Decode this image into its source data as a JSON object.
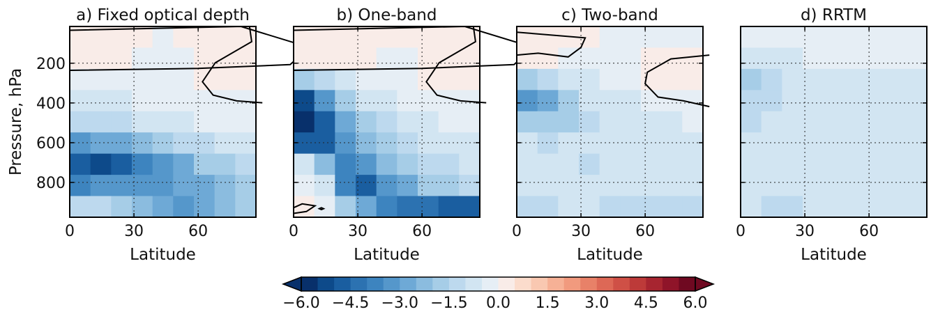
{
  "chart_data": {
    "type": "heatmap",
    "colormap": "RdBu_r",
    "colors": {
      "negative_max": "#08306b",
      "neutral": "#f7f7f7",
      "positive_max": "#67001f",
      "contour": "#000000"
    },
    "colorbar": {
      "orientation": "horizontal",
      "extend": "both",
      "range": [
        -6.0,
        6.0
      ],
      "levels": 24,
      "tick_values": [
        -6.0,
        -4.5,
        -3.0,
        -1.5,
        0.0,
        1.5,
        3.0,
        4.5,
        6.0
      ],
      "tick_labels": [
        "−6.0",
        "−4.5",
        "−3.0",
        "−1.5",
        "0.0",
        "1.5",
        "3.0",
        "4.5",
        "6.0"
      ]
    },
    "panels": [
      {
        "title": "a) Fixed optical depth",
        "xlabel": "Latitude",
        "ylabel": "Pressure, hPa",
        "show_yticks": true,
        "cells": [
          [
            0.3,
            0.4,
            0.2,
            0.0,
            -0.1,
            0.0,
            0.3,
            0.3,
            0.3
          ],
          [
            0.2,
            0.2,
            0.1,
            -0.1,
            -0.1,
            -0.1,
            0.3,
            0.3,
            0.3
          ],
          [
            -0.1,
            -0.1,
            -0.1,
            -0.1,
            -0.1,
            -0.2,
            0.2,
            0.3,
            0.3
          ],
          [
            -0.6,
            -0.6,
            -0.6,
            -0.5,
            -0.4,
            -0.3,
            -0.3,
            -0.2,
            -0.2
          ],
          [
            -1.3,
            -1.3,
            -1.2,
            -1.0,
            -0.9,
            -0.7,
            -0.5,
            -0.4,
            -0.3
          ],
          [
            -3.2,
            -3.0,
            -2.8,
            -2.4,
            -2.0,
            -1.5,
            -1.1,
            -0.8,
            -0.6
          ],
          [
            -5.0,
            -5.4,
            -4.6,
            -3.8,
            -3.2,
            -2.6,
            -2.0,
            -1.6,
            -1.1
          ],
          [
            -3.6,
            -3.4,
            -3.4,
            -3.3,
            -3.2,
            -2.9,
            -2.6,
            -2.1,
            -1.6
          ],
          [
            -1.4,
            -1.2,
            -1.6,
            -2.4,
            -3.0,
            -3.2,
            -3.0,
            -2.5,
            -2.0
          ]
        ],
        "contours": [
          "M 0 0.02 L 80 0 L 112 0.11 L 103 0.2 L 60 0.22 L 0 0.23",
          "M 84 0 L 85 0.08 L 68 0.19 L 62 0.29 L 67 0.36 L 78 0.39 L 90 0.4"
        ]
      },
      {
        "title": "b) One-band",
        "xlabel": "Latitude",
        "ylabel": "",
        "show_yticks": false,
        "cells": [
          [
            0.3,
            0.3,
            0.3,
            0.3,
            0.2,
            0.0,
            0.3,
            0.3,
            0.3
          ],
          [
            0.2,
            0.2,
            0.1,
            0.0,
            -0.1,
            -0.1,
            0.3,
            0.3,
            0.3
          ],
          [
            -2.0,
            -1.2,
            -0.6,
            -0.3,
            -0.2,
            -0.1,
            0.3,
            0.3,
            0.3
          ],
          [
            -5.4,
            -3.4,
            -1.8,
            -1.0,
            -0.6,
            -0.4,
            -0.3,
            -0.2,
            -0.2
          ],
          [
            -6.0,
            -4.6,
            -2.8,
            -1.8,
            -1.2,
            -0.8,
            -0.6,
            -0.5,
            -0.4
          ],
          [
            -4.8,
            -4.8,
            -3.4,
            -2.4,
            -1.8,
            -1.3,
            -1.0,
            -0.8,
            -0.6
          ],
          [
            -0.8,
            -2.4,
            -3.6,
            -3.2,
            -2.4,
            -1.8,
            -1.4,
            -1.1,
            -0.8
          ],
          [
            -0.2,
            -0.8,
            -3.6,
            -4.8,
            -3.4,
            -2.6,
            -2.0,
            -1.6,
            -1.2
          ],
          [
            0.1,
            -0.2,
            -1.6,
            -2.8,
            -3.6,
            -4.2,
            -4.4,
            -4.6,
            -5.0
          ]
        ],
        "contours": [
          "M 0 0.02 L 80 0 L 112 0.11 L 103 0.2 L 60 0.22 L 0 0.23",
          "M 84 0 L 85 0.08 L 68 0.19 L 62 0.29 L 67 0.36 L 78 0.39 L 90 0.4",
          "M 0 0.95 L 4 0.93 L 10 0.94 L 6 0.97 L 0 0.98",
          "M 12 0.955 L 13 0.95 L 14 0.955 L 13 0.96 Z"
        ]
      },
      {
        "title": "c) Two-band",
        "xlabel": "Latitude",
        "ylabel": "",
        "show_yticks": false,
        "cells": [
          [
            0.3,
            0.4,
            0.2,
            0.0,
            -0.1,
            -0.1,
            -0.1,
            -0.1,
            -0.1
          ],
          [
            0.1,
            0.1,
            -0.1,
            -0.2,
            -0.2,
            -0.1,
            0.3,
            0.3,
            0.3
          ],
          [
            -1.6,
            -1.4,
            -1.0,
            -0.6,
            -0.4,
            -0.3,
            0.2,
            0.3,
            0.3
          ],
          [
            -3.2,
            -2.8,
            -1.8,
            -1.0,
            -0.8,
            -0.6,
            -0.4,
            -0.3,
            -0.3
          ],
          [
            -1.8,
            -2.0,
            -1.6,
            -1.1,
            -0.9,
            -0.8,
            -0.7,
            -0.6,
            -0.5
          ],
          [
            -1.0,
            -1.1,
            -1.0,
            -1.0,
            -0.9,
            -0.9,
            -0.8,
            -0.8,
            -0.7
          ],
          [
            -0.9,
            -0.9,
            -0.9,
            -1.1,
            -1.0,
            -1.0,
            -1.0,
            -0.9,
            -0.9
          ],
          [
            -1.0,
            -1.0,
            -1.0,
            -1.0,
            -1.0,
            -1.0,
            -1.0,
            -1.0,
            -1.0
          ],
          [
            -1.1,
            -1.1,
            -1.0,
            -1.0,
            -1.2,
            -1.2,
            -1.2,
            -1.2,
            -1.2
          ]
        ],
        "contours": [
          "M 0 0.03 L 32 0.06 L 30 0.11 L 24 0.16 L 10 0.14 L 0 0.15",
          "M 90 0.15 L 72 0.17 L 61 0.24 L 60 0.3 L 66 0.37 L 78 0.39 L 90 0.42"
        ]
      },
      {
        "title": "d) RRTM",
        "xlabel": "Latitude",
        "ylabel": "",
        "show_yticks": false,
        "cells": [
          [
            -0.4,
            -0.4,
            -0.3,
            -0.3,
            -0.3,
            -0.3,
            -0.3,
            -0.3,
            -0.3
          ],
          [
            -0.8,
            -0.8,
            -0.6,
            -0.5,
            -0.4,
            -0.4,
            -0.4,
            -0.4,
            -0.4
          ],
          [
            -1.6,
            -1.3,
            -1.0,
            -0.8,
            -0.7,
            -0.6,
            -0.6,
            -0.6,
            -0.6
          ],
          [
            -1.5,
            -1.2,
            -1.0,
            -0.8,
            -0.7,
            -0.7,
            -0.7,
            -0.7,
            -0.7
          ],
          [
            -1.1,
            -1.0,
            -0.9,
            -0.8,
            -0.8,
            -0.8,
            -0.8,
            -0.8,
            -0.8
          ],
          [
            -1.0,
            -1.0,
            -0.8,
            -0.8,
            -0.8,
            -0.8,
            -0.8,
            -0.8,
            -0.8
          ],
          [
            -0.9,
            -0.9,
            -0.8,
            -0.8,
            -0.8,
            -0.8,
            -0.8,
            -0.8,
            -0.8
          ],
          [
            -0.9,
            -1.0,
            -0.9,
            -0.9,
            -0.9,
            -0.9,
            -0.9,
            -0.9,
            -0.9
          ],
          [
            -1.0,
            -1.4,
            -1.1,
            -1.0,
            -0.9,
            -0.9,
            -0.9,
            -0.9,
            -0.9
          ]
        ],
        "contours": []
      }
    ],
    "x_ticks": [
      0,
      30,
      60
    ],
    "x_range": [
      0,
      87
    ],
    "y_ticks": [
      200,
      400,
      600,
      800
    ],
    "y_range": [
      15,
      975
    ],
    "grid": true,
    "grid_style": "dotted"
  }
}
